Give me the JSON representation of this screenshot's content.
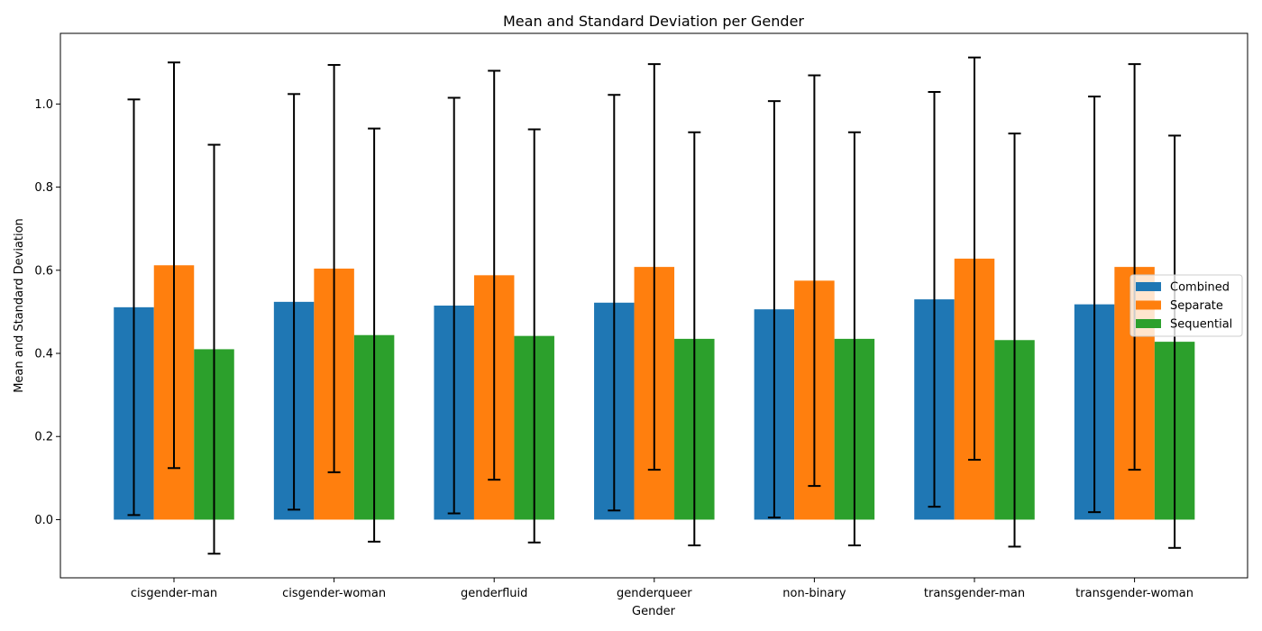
{
  "chart_data": {
    "type": "bar",
    "title": "Mean and Standard Deviation per Gender",
    "xlabel": "Gender",
    "ylabel": "Mean and Standard Deviation",
    "categories": [
      "cisgender-man",
      "cisgender-woman",
      "genderfluid",
      "genderqueer",
      "non-binary",
      "transgender-man",
      "transgender-woman"
    ],
    "ylim": [
      -0.14,
      1.17
    ],
    "yticks": [
      "0.0",
      "0.2",
      "0.4",
      "0.6",
      "0.8",
      "1.0"
    ],
    "grid": false,
    "legend_position": "center-right",
    "series": [
      {
        "name": "Combined",
        "color": "#1f77b4",
        "values": [
          0.511,
          0.524,
          0.515,
          0.522,
          0.506,
          0.53,
          0.518
        ],
        "std": [
          0.5,
          0.5,
          0.5,
          0.5,
          0.501,
          0.499,
          0.5
        ]
      },
      {
        "name": "Separate",
        "color": "#ff7f0e",
        "values": [
          0.612,
          0.604,
          0.588,
          0.608,
          0.575,
          0.628,
          0.608
        ],
        "std": [
          0.488,
          0.49,
          0.492,
          0.488,
          0.494,
          0.484,
          0.488
        ]
      },
      {
        "name": "Sequential",
        "color": "#2ca02c",
        "values": [
          0.41,
          0.444,
          0.442,
          0.435,
          0.435,
          0.432,
          0.428
        ],
        "std": [
          0.492,
          0.497,
          0.497,
          0.497,
          0.497,
          0.497,
          0.496
        ]
      }
    ]
  }
}
